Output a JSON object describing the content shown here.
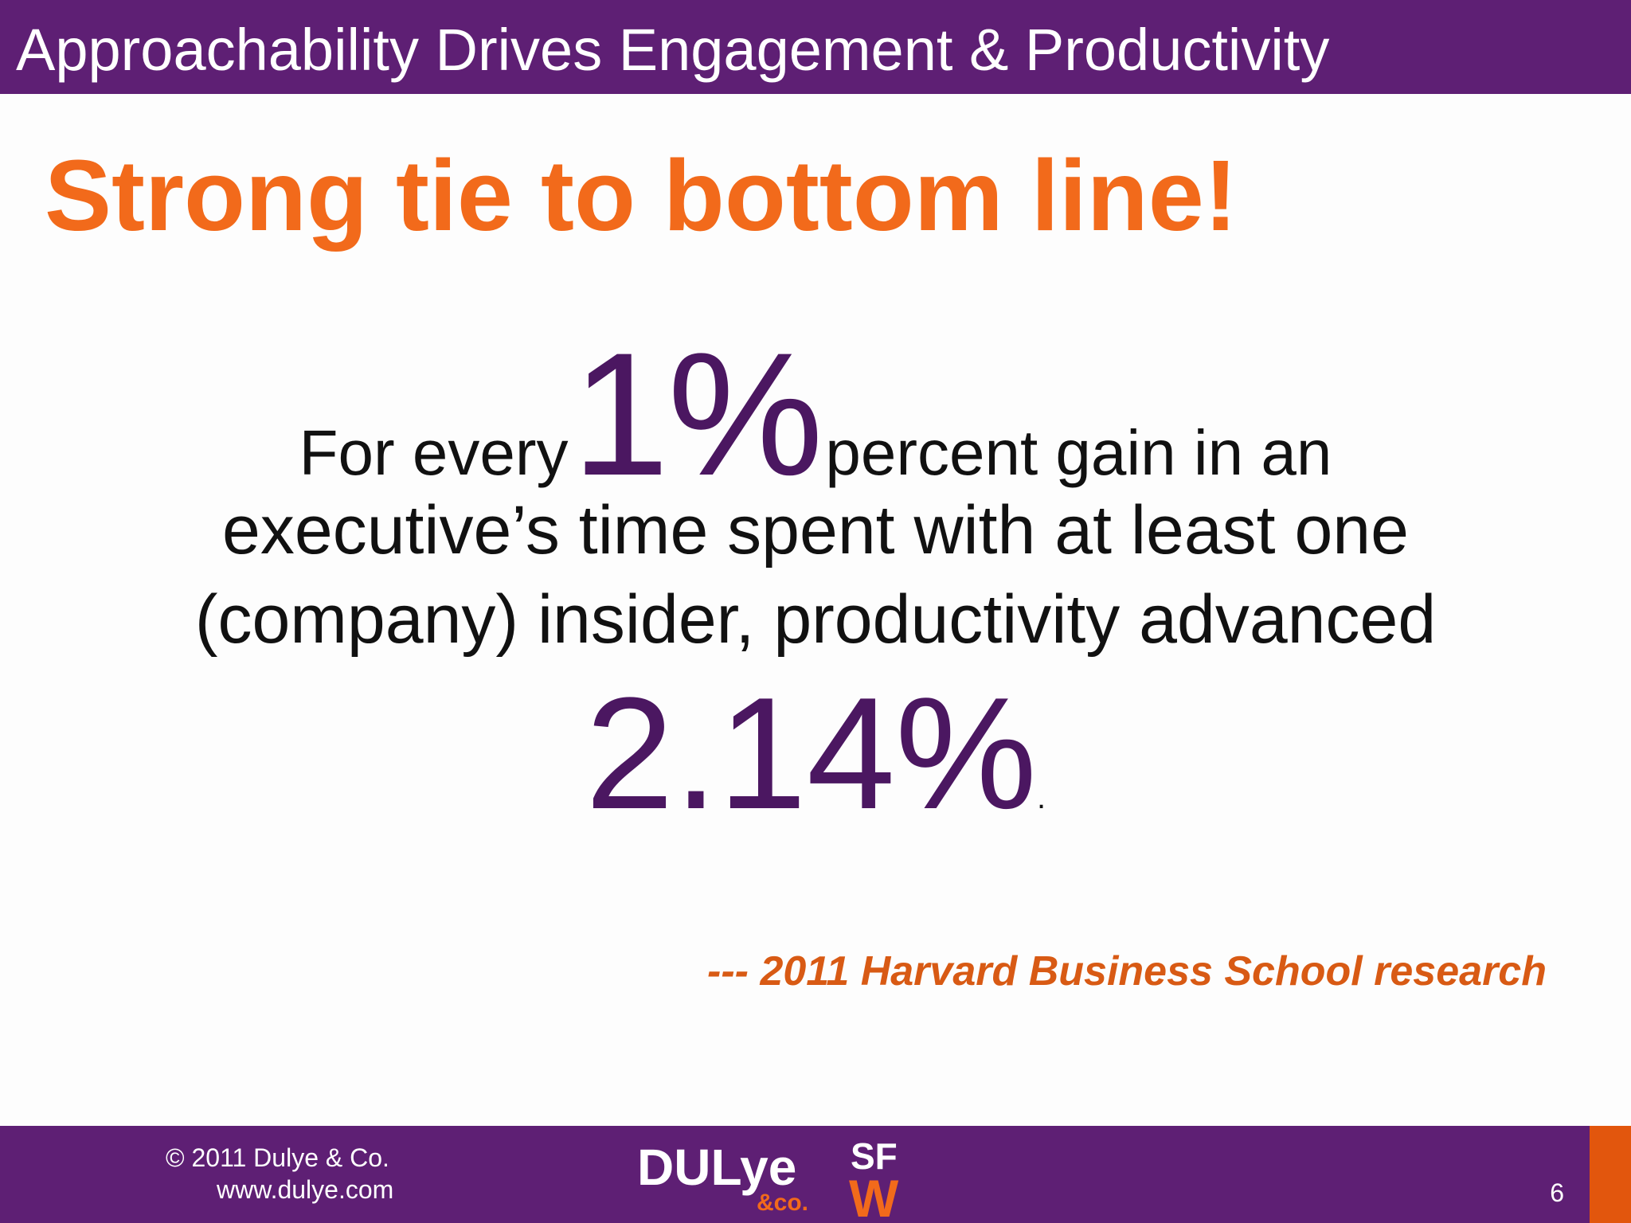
{
  "header": {
    "title": "Approachability Drives Engagement & Productivity"
  },
  "subtitle": "Strong tie to bottom line!",
  "statement": {
    "prefix": "For every",
    "highlight_number": "1%",
    "suffix": "percent gain in an",
    "line2": "executive’s time spent with at least one",
    "line3": "(company) insider, productivity advanced",
    "result": "2.14%",
    "result_end": "."
  },
  "citation": "--- 2011 Harvard Business School research",
  "footer": {
    "copyright": "© 2011 Dulye & Co.",
    "website": "www.dulye.com",
    "page_number": "6",
    "logo_dulye_text": "DULye",
    "logo_dulye_sub": "&co.",
    "logo_sfw_text": "SF W"
  },
  "colors": {
    "purple": "#5e1f74",
    "dark_purple": "#4b1761",
    "orange": "#f26a1b",
    "accent_orange": "#e2560d"
  }
}
